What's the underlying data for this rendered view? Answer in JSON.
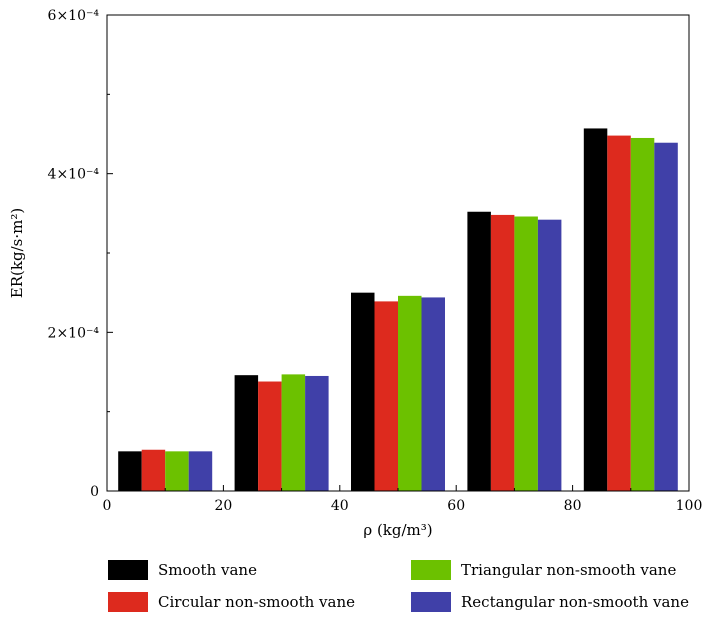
{
  "chart_data": {
    "type": "bar",
    "title": "",
    "xlabel": "ρ (kg/m³)",
    "ylabel": "ER(kg/s·m²)",
    "xlim": [
      0,
      100
    ],
    "ylim": [
      0,
      0.0006
    ],
    "x_ticks": [
      "0",
      "20",
      "40",
      "60",
      "80",
      "100"
    ],
    "y_ticks": [
      "0",
      "2×10⁻⁴",
      "4×10⁻⁴",
      "6×10⁻⁴"
    ],
    "x": [
      10,
      30,
      50,
      70,
      90
    ],
    "grid": false,
    "legend_position": "bottom",
    "series": [
      {
        "name": "Smooth vane",
        "color": "#000000",
        "values": [
          5e-05,
          0.000146,
          0.00025,
          0.000352,
          0.000457
        ]
      },
      {
        "name": "Circular non-smooth vane",
        "color": "#dd2a1e",
        "values": [
          5.2e-05,
          0.000138,
          0.000239,
          0.000348,
          0.000448
        ]
      },
      {
        "name": "Triangular non-smooth vane",
        "color": "#6cc100",
        "values": [
          5e-05,
          0.000147,
          0.000246,
          0.000346,
          0.000445
        ]
      },
      {
        "name": "Rectangular non-smooth vane",
        "color": "#4040a8",
        "values": [
          5e-05,
          0.000145,
          0.000244,
          0.000342,
          0.000439
        ]
      }
    ]
  }
}
